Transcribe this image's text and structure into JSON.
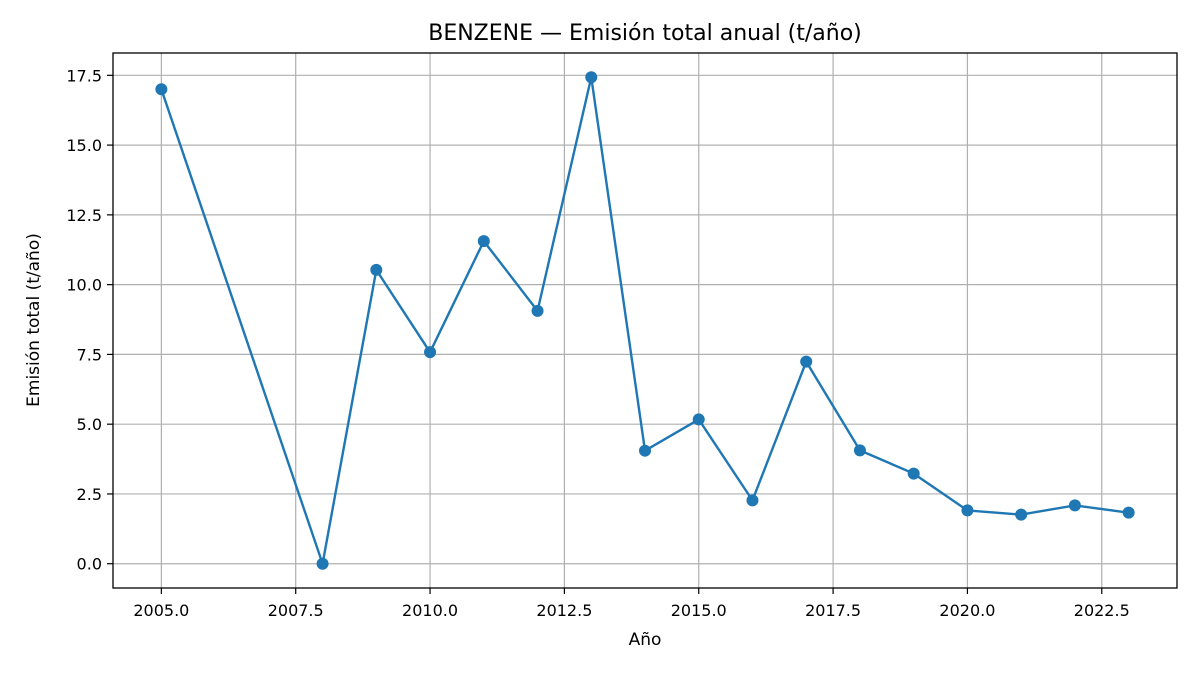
{
  "chart_data": {
    "type": "line",
    "title": "BENZENE — Emisión total anual (t/año)",
    "xlabel": "Año",
    "ylabel": "Emisión total (t/año)",
    "xlim": [
      2004.1,
      2023.9
    ],
    "ylim": [
      -0.87,
      18.3
    ],
    "xticks": [
      2005.0,
      2007.5,
      2010.0,
      2012.5,
      2015.0,
      2017.5,
      2020.0,
      2022.5
    ],
    "xtick_labels": [
      "2005.0",
      "2007.5",
      "2010.0",
      "2012.5",
      "2015.0",
      "2017.5",
      "2020.0",
      "2022.5"
    ],
    "yticks": [
      0.0,
      2.5,
      5.0,
      7.5,
      10.0,
      12.5,
      15.0,
      17.5
    ],
    "ytick_labels": [
      "0.0",
      "2.5",
      "5.0",
      "7.5",
      "10.0",
      "12.5",
      "15.0",
      "17.5"
    ],
    "grid": true,
    "color": "#1f77b4",
    "x": [
      2005,
      2008,
      2009,
      2010,
      2011,
      2012,
      2013,
      2014,
      2015,
      2016,
      2017,
      2018,
      2019,
      2020,
      2021,
      2022,
      2023
    ],
    "y": [
      17.0,
      0.0,
      10.53,
      7.58,
      11.56,
      9.06,
      17.43,
      4.05,
      5.17,
      2.27,
      7.24,
      4.06,
      3.23,
      1.91,
      1.76,
      2.09,
      1.83
    ]
  }
}
